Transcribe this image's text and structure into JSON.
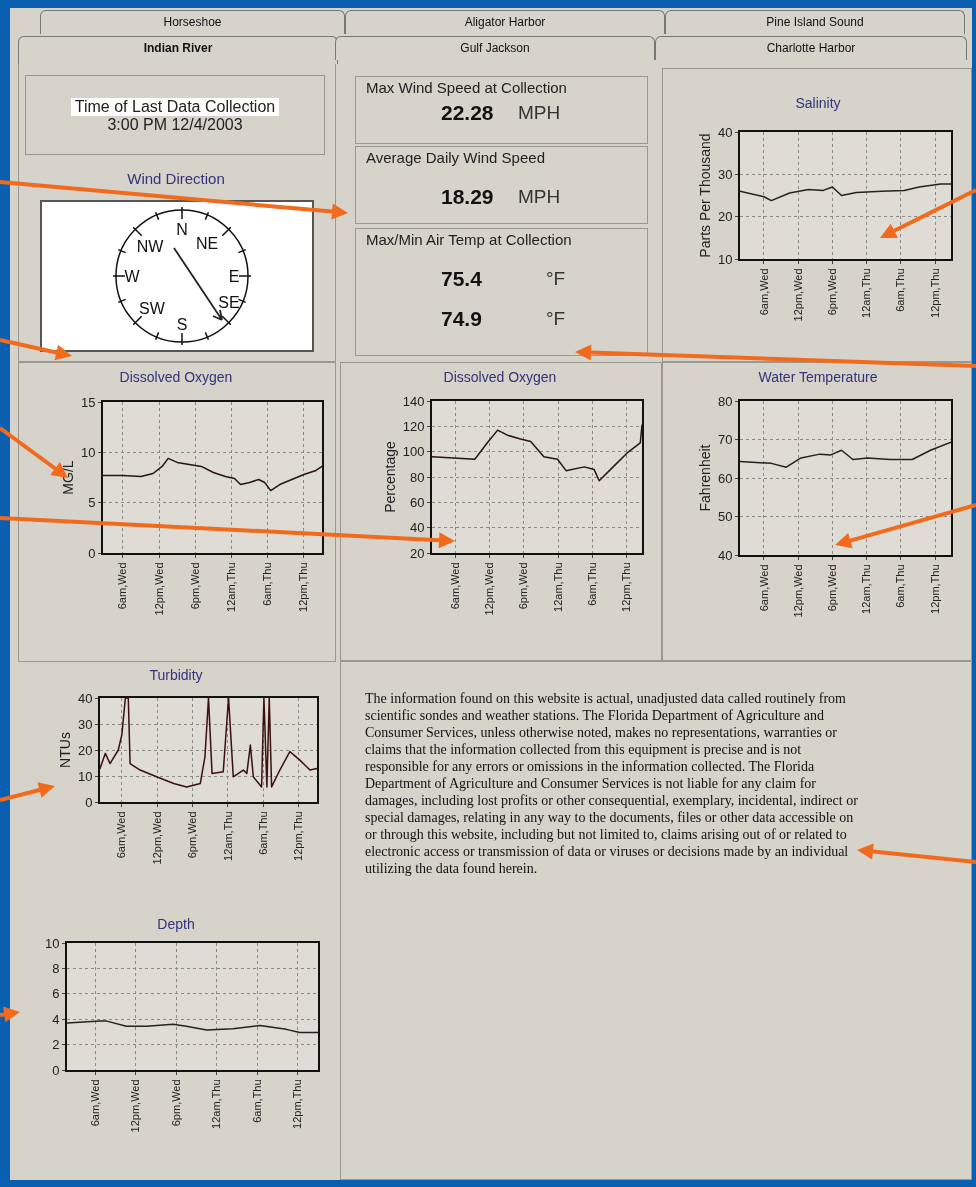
{
  "chart_data": [
    {
      "type": "other",
      "annotations": [
        "Horseshoe",
        "Aligator Harbor",
        "Pine Island Sound",
        "Indian River",
        "Gulf Jackson",
        "Charlotte Harbor"
      ]
    },
    {
      "type": "other",
      "title": "Time of Last Data Collection",
      "annotations": [
        "3:00 PM 12/4/2003"
      ]
    },
    {
      "type": "other",
      "title": "Max Wind Speed at Collection",
      "annotations": [
        "22.28",
        "MPH"
      ]
    },
    {
      "type": "other",
      "title": "Average Daily Wind Speed",
      "annotations": [
        "18.29",
        "MPH"
      ]
    },
    {
      "type": "other",
      "title": "Max/Min Air Temp at Collection",
      "annotations": [
        "75.4",
        "°F",
        "74.9",
        "°F"
      ]
    },
    {
      "type": "line",
      "title": "Salinity",
      "ylabel": "Parts Per Thousand",
      "xlim": [
        "2003-12-03T01:48",
        "2003-12-04T14:48"
      ],
      "xticks": [
        {
          "value": "2003-12-03T06:00",
          "label": "6am,Wed"
        },
        {
          "value": "2003-12-03T12:00",
          "label": "12pm,Wed"
        },
        {
          "value": "2003-12-03T18:00",
          "label": "6pm,Wed"
        },
        {
          "value": "2003-12-04T00:00",
          "label": "12am,Thu"
        },
        {
          "value": "2003-12-04T06:00",
          "label": "6am,Thu"
        },
        {
          "value": "2003-12-04T12:00",
          "label": "12pm,Thu"
        }
      ],
      "ylim": [
        10,
        40
      ],
      "yticks": [
        10,
        20,
        30,
        40
      ],
      "grid": true,
      "x": [
        "2003-12-03T01:48",
        "2003-12-03T06:00",
        "2003-12-03T07:18",
        "2003-12-03T10:30",
        "2003-12-03T13:48",
        "2003-12-03T16:24",
        "2003-12-03T18:00",
        "2003-12-03T19:36",
        "2003-12-03T22:12",
        "2003-12-04T02:42",
        "2003-12-04T06:36",
        "2003-12-04T09:12",
        "2003-12-04T13:00",
        "2003-12-04T14:48"
      ],
      "series": [
        {
          "color": "#222222",
          "values": [
            26,
            24.7,
            23.8,
            25.6,
            26.4,
            26.2,
            27,
            25,
            25.7,
            26,
            26.2,
            27,
            27.7,
            27.7
          ]
        }
      ]
    },
    {
      "type": "other",
      "title": "Wind Direction",
      "annotations": [
        "N",
        "NE",
        "E",
        "SE",
        "S",
        "SW",
        "W",
        "NW"
      ]
    },
    {
      "type": "line",
      "title": "Dissolved Oxygen",
      "ylabel": "MG/L",
      "xlim": [
        "2003-12-03T02:42",
        "2003-12-04T15:00"
      ],
      "xticks": [
        {
          "value": "2003-12-03T06:00",
          "label": "6am,Wed"
        },
        {
          "value": "2003-12-03T12:00",
          "label": "12pm,Wed"
        },
        {
          "value": "2003-12-03T18:00",
          "label": "6pm,Wed"
        },
        {
          "value": "2003-12-04T00:00",
          "label": "12am,Thu"
        },
        {
          "value": "2003-12-04T06:00",
          "label": "6am,Thu"
        },
        {
          "value": "2003-12-04T12:00",
          "label": "12pm,Thu"
        }
      ],
      "ylim": [
        0,
        15
      ],
      "yticks": [
        0,
        5,
        10,
        15
      ],
      "grid": true,
      "x": [
        "2003-12-03T02:42",
        "2003-12-03T06:00",
        "2003-12-03T09:00",
        "2003-12-03T11:00",
        "2003-12-03T12:30",
        "2003-12-03T13:30",
        "2003-12-03T15:00",
        "2003-12-03T17:00",
        "2003-12-03T19:00",
        "2003-12-03T21:00",
        "2003-12-03T23:00",
        "2003-12-04T00:30",
        "2003-12-04T01:30",
        "2003-12-04T03:00",
        "2003-12-04T04:30",
        "2003-12-04T05:30",
        "2003-12-04T06:30",
        "2003-12-04T08:00",
        "2003-12-04T10:00",
        "2003-12-04T12:00",
        "2003-12-04T14:00",
        "2003-12-04T15:00"
      ],
      "series": [
        {
          "color": "#2a1414",
          "values": [
            7.7,
            7.7,
            7.6,
            7.9,
            8.6,
            9.4,
            9.0,
            8.8,
            8.6,
            8.0,
            7.6,
            7.4,
            6.8,
            7.0,
            7.3,
            7.0,
            6.2,
            6.8,
            7.3,
            7.8,
            8.2,
            8.6
          ]
        }
      ]
    },
    {
      "type": "line",
      "title": "Dissolved Oxygen",
      "ylabel": "Percentage",
      "xlim": [
        "2003-12-03T01:54",
        "2003-12-04T14:42"
      ],
      "xticks": [
        {
          "value": "2003-12-03T06:00",
          "label": "6am,Wed"
        },
        {
          "value": "2003-12-03T12:00",
          "label": "12pm,Wed"
        },
        {
          "value": "2003-12-03T18:00",
          "label": "6pm,Wed"
        },
        {
          "value": "2003-12-04T00:00",
          "label": "12am,Thu"
        },
        {
          "value": "2003-12-04T06:00",
          "label": "6am,Thu"
        },
        {
          "value": "2003-12-04T12:00",
          "label": "12pm,Thu"
        }
      ],
      "ylim": [
        20,
        140
      ],
      "yticks": [
        20,
        40,
        60,
        80,
        100,
        120,
        140
      ],
      "grid": true,
      "x": [
        "2003-12-03T01:54",
        "2003-12-03T09:24",
        "2003-12-03T11:36",
        "2003-12-03T13:24",
        "2003-12-03T15:06",
        "2003-12-03T17:24",
        "2003-12-03T19:12",
        "2003-12-03T21:30",
        "2003-12-03T23:54",
        "2003-12-04T01:24",
        "2003-12-04T04:36",
        "2003-12-04T06:18",
        "2003-12-04T07:12",
        "2003-12-04T09:12",
        "2003-12-04T12:06",
        "2003-12-04T14:24",
        "2003-12-04T14:42"
      ],
      "series": [
        {
          "color": "#2a1414",
          "values": [
            96,
            94,
            107,
            117,
            113,
            110,
            108,
            96,
            94,
            85,
            88,
            86,
            77,
            86,
            99,
            107,
            121
          ]
        }
      ]
    },
    {
      "type": "line",
      "title": "Water Temperature",
      "ylabel": "Fahrenheit",
      "xlim": [
        "2003-12-03T01:48",
        "2003-12-04T14:48"
      ],
      "xticks": [
        {
          "value": "2003-12-03T06:00",
          "label": "6am,Wed"
        },
        {
          "value": "2003-12-03T12:00",
          "label": "12pm,Wed"
        },
        {
          "value": "2003-12-03T18:00",
          "label": "6pm,Wed"
        },
        {
          "value": "2003-12-04T00:00",
          "label": "12am,Thu"
        },
        {
          "value": "2003-12-04T06:00",
          "label": "6am,Thu"
        },
        {
          "value": "2003-12-04T12:00",
          "label": "12pm,Thu"
        }
      ],
      "ylim": [
        40,
        80
      ],
      "yticks": [
        40,
        50,
        60,
        70,
        80
      ],
      "grid": true,
      "x": [
        "2003-12-03T01:48",
        "2003-12-03T07:18",
        "2003-12-03T09:54",
        "2003-12-03T12:30",
        "2003-12-03T15:48",
        "2003-12-03T17:42",
        "2003-12-03T19:36",
        "2003-12-03T21:36",
        "2003-12-04T00:12",
        "2003-12-04T04:06",
        "2003-12-04T08:00",
        "2003-12-04T11:12",
        "2003-12-04T14:48"
      ],
      "series": [
        {
          "color": "#222222",
          "values": [
            64.3,
            63.8,
            62.8,
            65.2,
            66.2,
            66,
            67.2,
            64.8,
            65.2,
            64.8,
            64.8,
            67.2,
            69.3
          ]
        }
      ]
    },
    {
      "type": "line",
      "title": "Turbidity",
      "ylabel": "NTUs",
      "xlim": [
        "2003-12-03T02:18",
        "2003-12-04T15:06"
      ],
      "xticks": [
        {
          "value": "2003-12-03T06:00",
          "label": "6am,Wed"
        },
        {
          "value": "2003-12-03T12:00",
          "label": "12pm,Wed"
        },
        {
          "value": "2003-12-03T18:00",
          "label": "6pm,Wed"
        },
        {
          "value": "2003-12-04T00:00",
          "label": "12am,Thu"
        },
        {
          "value": "2003-12-04T06:00",
          "label": "6am,Thu"
        },
        {
          "value": "2003-12-04T12:00",
          "label": "12pm,Thu"
        }
      ],
      "ylim": [
        0,
        40
      ],
      "yticks": [
        0,
        10,
        20,
        30,
        40
      ],
      "grid": true,
      "x": [
        "2003-12-03T02:18",
        "2003-12-03T03:12",
        "2003-12-03T04:00",
        "2003-12-03T05:24",
        "2003-12-03T06:00",
        "2003-12-03T06:36",
        "2003-12-03T07:06",
        "2003-12-03T07:24",
        "2003-12-03T09:06",
        "2003-12-03T11:54",
        "2003-12-03T14:48",
        "2003-12-03T17:00",
        "2003-12-03T19:18",
        "2003-12-03T20:06",
        "2003-12-03T20:42",
        "2003-12-03T21:18",
        "2003-12-03T23:12",
        "2003-12-04T00:06",
        "2003-12-04T00:54",
        "2003-12-04T02:36",
        "2003-12-04T03:12",
        "2003-12-04T03:48",
        "2003-12-04T04:18",
        "2003-12-04T05:42",
        "2003-12-04T06:06",
        "2003-12-04T06:36",
        "2003-12-04T07:00",
        "2003-12-04T07:24",
        "2003-12-04T08:48",
        "2003-12-04T10:30",
        "2003-12-04T12:12",
        "2003-12-04T13:54",
        "2003-12-04T15:06"
      ],
      "series": [
        {
          "color": "#3a1010",
          "values": [
            12.9,
            18.7,
            14.8,
            20,
            25.8,
            40,
            40,
            14.8,
            12.3,
            9.7,
            7.1,
            5.8,
            7.1,
            17.4,
            40,
            11,
            11.6,
            40,
            9.7,
            12.3,
            11,
            21.9,
            9.7,
            5.8,
            40,
            5.8,
            40,
            5.8,
            12.3,
            19.4,
            16.1,
            12.3,
            12.9
          ]
        }
      ]
    },
    {
      "type": "other",
      "annotations": [
        "The information found on this website is actual, unadjusted data called routinely from scientific sondes and weather stations.  The Florida Department of Agriculture and Consumer Services, unless otherwise noted, makes no representations, warranties or claims that the information collected from this equipment is precise and is not responsible for any errors or omissions in the information collected.  The Florida Department of Agriculture and Consumer Services is not liable for any claim for damages, including lost profits or other consequential, exemplary, incidental, indirect or special damages, relating in any way to the documents, files or other data accessible on or through this website, including but not limited to, claims arising out of or related to electronic access or transmission of data or viruses or decisions made by an individual utilizing the data found herein."
      ]
    },
    {
      "type": "line",
      "title": "Depth",
      "xlim": [
        "2003-12-03T01:48",
        "2003-12-04T15:00"
      ],
      "xticks": [
        {
          "value": "2003-12-03T06:00",
          "label": "6am,Wed"
        },
        {
          "value": "2003-12-03T12:00",
          "label": "12pm,Wed"
        },
        {
          "value": "2003-12-03T18:00",
          "label": "6pm,Wed"
        },
        {
          "value": "2003-12-04T00:00",
          "label": "12am,Thu"
        },
        {
          "value": "2003-12-04T06:00",
          "label": "6am,Thu"
        },
        {
          "value": "2003-12-04T12:00",
          "label": "12pm,Thu"
        }
      ],
      "ylim": [
        0,
        10
      ],
      "yticks": [
        0,
        2,
        4,
        6,
        8,
        10
      ],
      "grid": true,
      "x": [
        "2003-12-03T01:48",
        "2003-12-03T06:42",
        "2003-12-03T07:42",
        "2003-12-03T10:36",
        "2003-12-03T13:36",
        "2003-12-03T17:30",
        "2003-12-03T19:30",
        "2003-12-03T22:30",
        "2003-12-04T02:24",
        "2003-12-04T06:24",
        "2003-12-04T10:18",
        "2003-12-04T12:18",
        "2003-12-04T15:00"
      ],
      "series": [
        {
          "color": "#222222",
          "values": [
            3.7,
            3.85,
            3.85,
            3.45,
            3.45,
            3.6,
            3.45,
            3.15,
            3.25,
            3.5,
            3.2,
            2.95,
            2.95
          ]
        }
      ]
    }
  ]
}
